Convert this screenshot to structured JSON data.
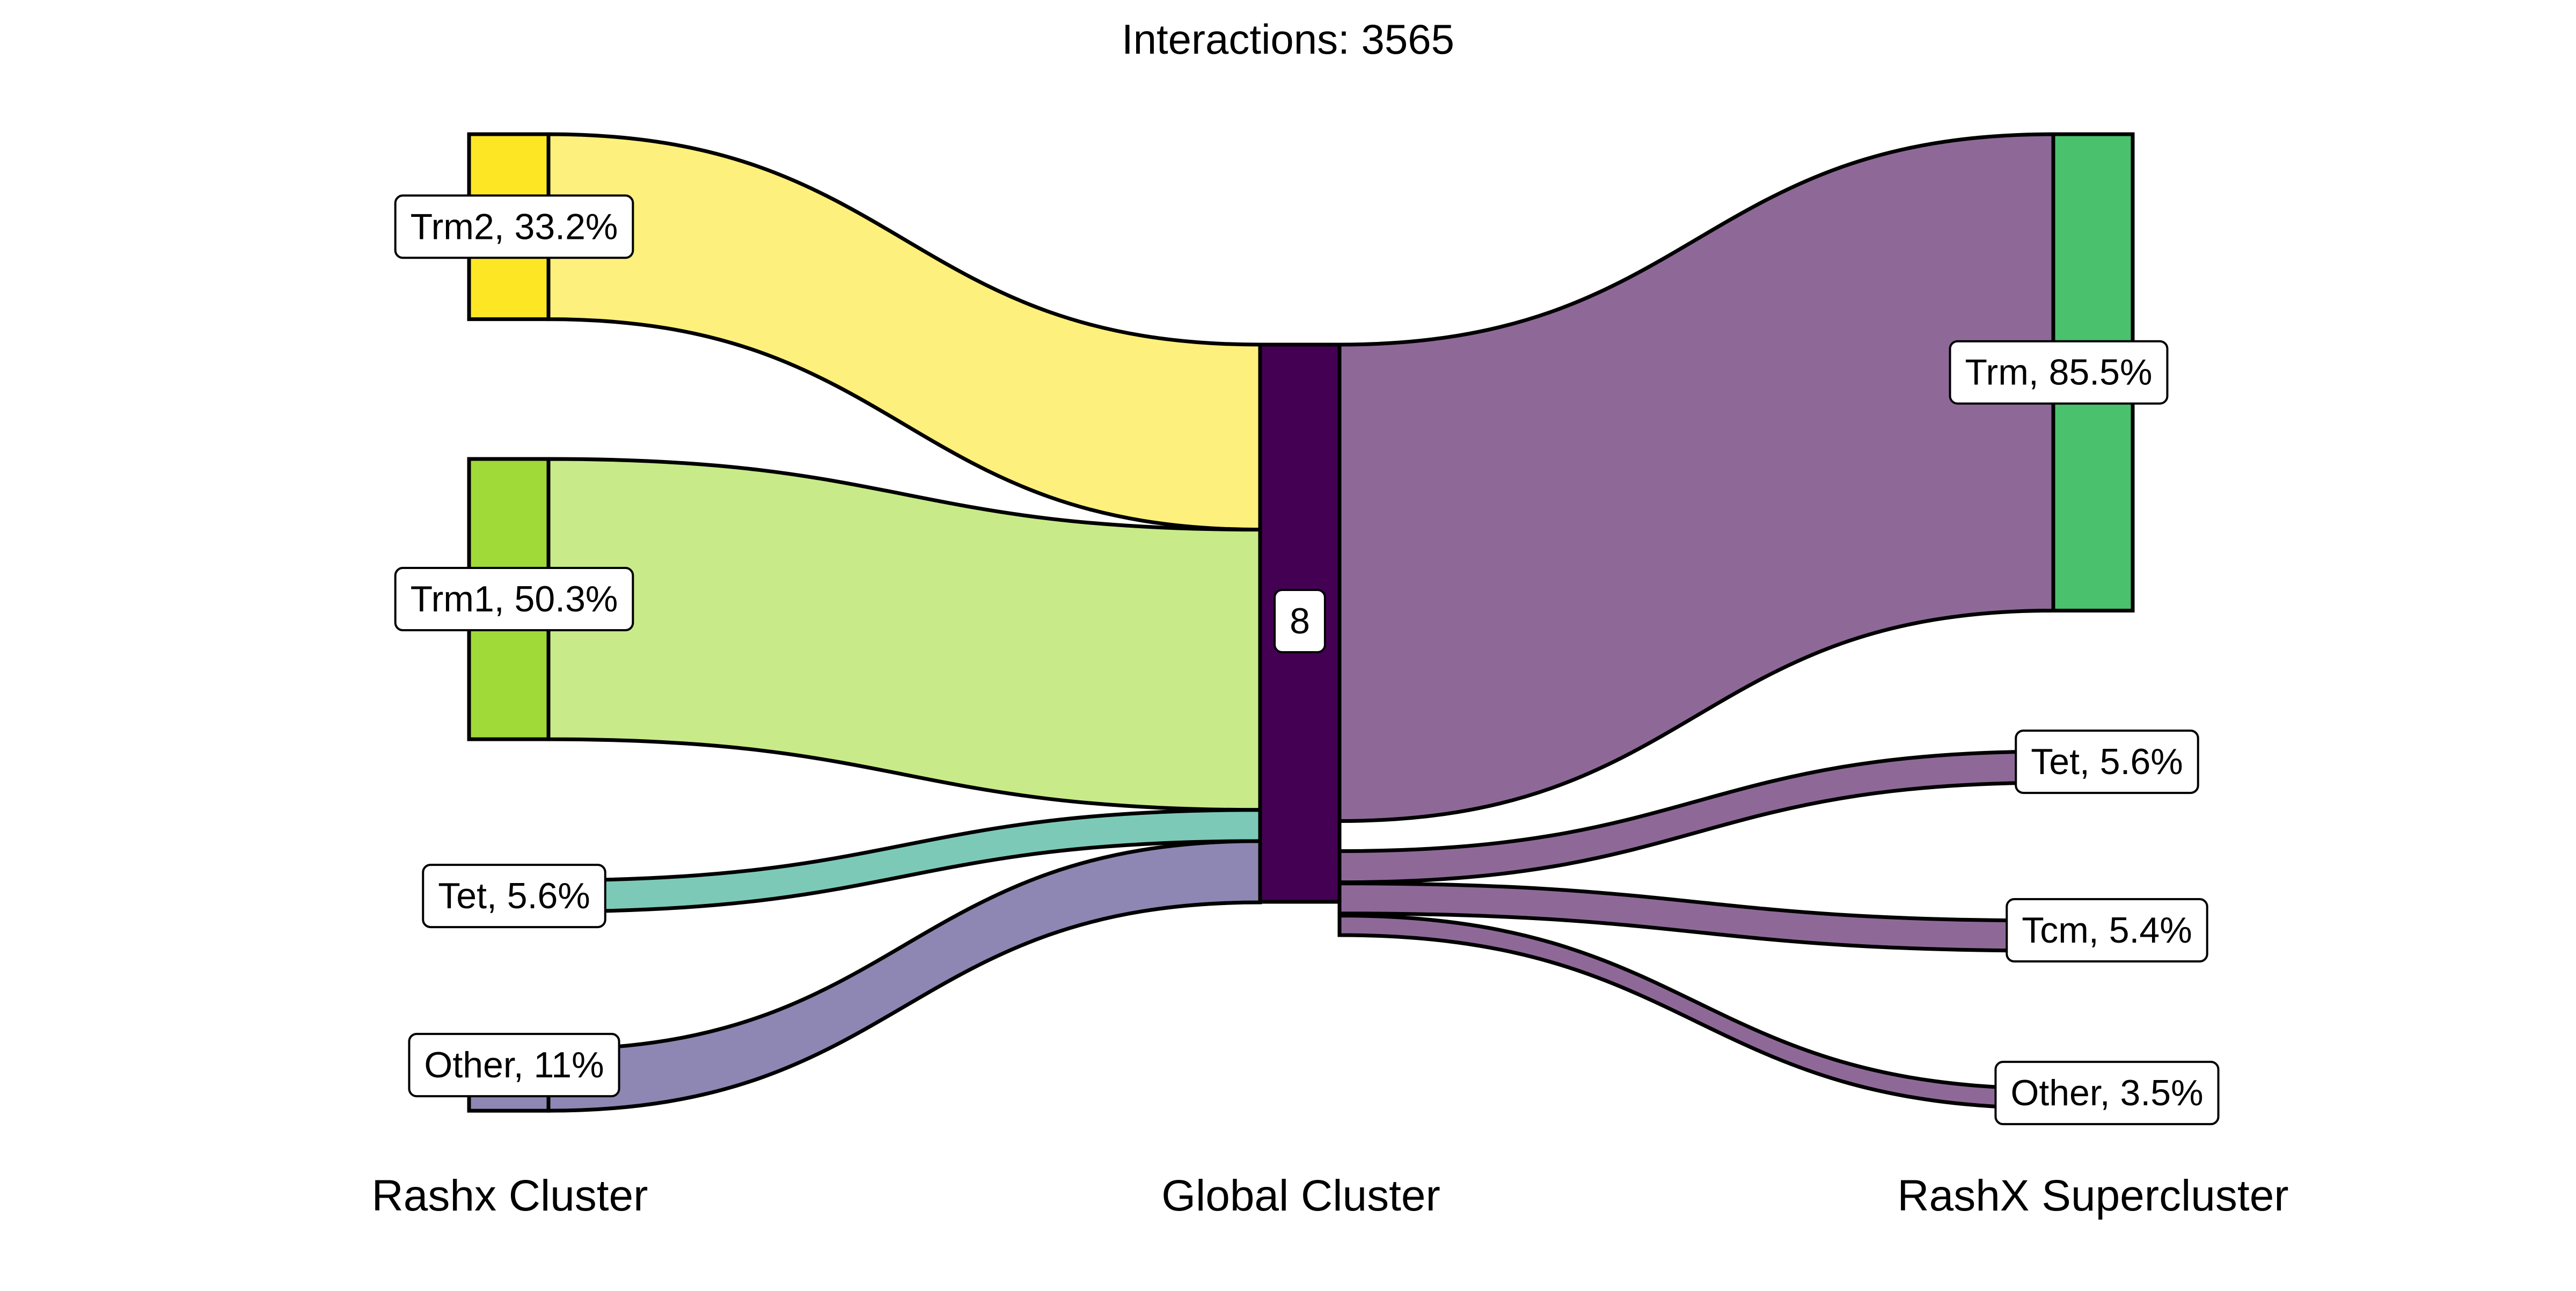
{
  "chart_data": {
    "type": "sankey",
    "title": "Interactions: 3565",
    "columns": [
      "Rashx Cluster",
      "Global Cluster",
      "RashX Supercluster"
    ],
    "left_nodes": [
      {
        "id": "trm2",
        "label": "Trm2, 33.2%",
        "value": 33.2,
        "node_color": "#fde725",
        "flow_color": "#fef07c"
      },
      {
        "id": "trm1",
        "label": "Trm1, 50.3%",
        "value": 50.3,
        "node_color": "#a0da39",
        "flow_color": "#c8ea89"
      },
      {
        "id": "tet",
        "label": "Tet, 5.6%",
        "value": 5.6,
        "node_color": "#7dc9b8",
        "flow_color": "#7dc9b8"
      },
      {
        "id": "other",
        "label": "Other, 11%",
        "value": 11,
        "node_color": "#8e87b3",
        "flow_color": "#8e87b3"
      }
    ],
    "center_node": {
      "id": "g8",
      "label": "8",
      "value": 100,
      "node_color": "#440154"
    },
    "right_nodes": [
      {
        "id": "trm",
        "label": "Trm, 85.5%",
        "value": 85.5,
        "node_color": "#4ac16d",
        "flow_color": "#8e6998"
      },
      {
        "id": "tet",
        "label": "Tet, 5.6%",
        "value": 5.6,
        "node_color": "#8e6998",
        "flow_color": "#8e6998"
      },
      {
        "id": "tcm",
        "label": "Tcm, 5.4%",
        "value": 5.4,
        "node_color": "#8e6998",
        "flow_color": "#8e6998"
      },
      {
        "id": "other",
        "label": "Other, 3.5%",
        "value": 3.5,
        "node_color": "#8e6998",
        "flow_color": "#8e6998"
      }
    ]
  }
}
